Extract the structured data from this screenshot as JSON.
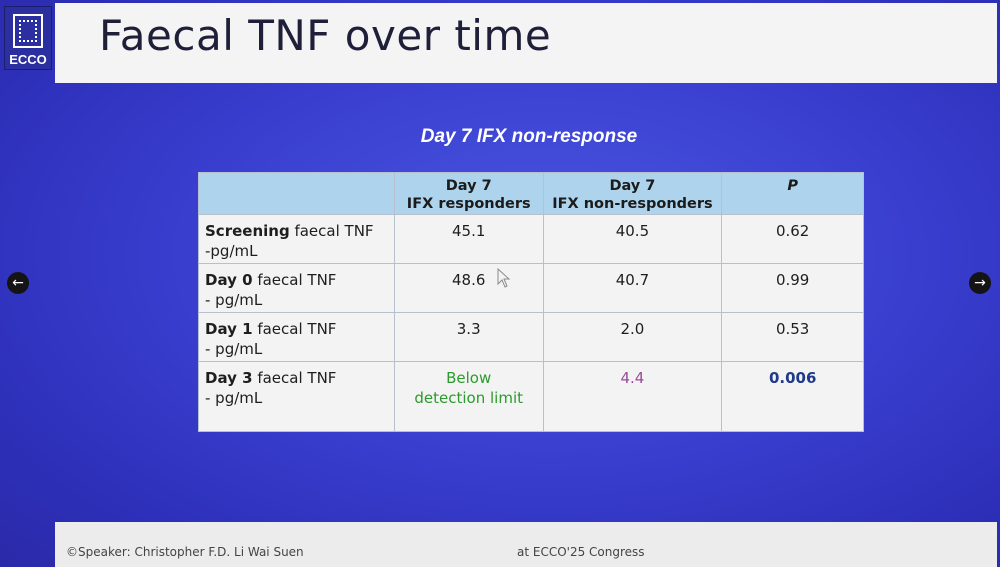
{
  "slide": {
    "title": "Faecal TNF over time",
    "logo_text": "ECCO",
    "subtitle": "Day 7 IFX non-response"
  },
  "table": {
    "headers": [
      "",
      "Day 7\nIFX responders",
      "Day 7\nIFX non-responders",
      "P"
    ],
    "rows": [
      {
        "label_bold": "Screening",
        "label_rest": " faecal TNF",
        "label_line2": "-pg/mL",
        "values": [
          "45.1",
          "40.5",
          "0.62"
        ]
      },
      {
        "label_bold": "Day 0",
        "label_rest": " faecal TNF",
        "label_line2": "- pg/mL",
        "values": [
          "48.6",
          "40.7",
          "0.99"
        ]
      },
      {
        "label_bold": "Day 1",
        "label_rest": " faecal TNF",
        "label_line2": "- pg/mL",
        "values": [
          "3.3",
          "2.0",
          "0.53"
        ]
      },
      {
        "label_bold": "Day 3",
        "label_rest": " faecal TNF",
        "label_line2": "- pg/mL",
        "values": [
          "Below detection limit",
          "4.4",
          "0.006"
        ]
      }
    ],
    "colors": {
      "below_limit": "#2c9a2c",
      "non_responder_day3": "#9b4a9a",
      "significant_p": "#1f3a8a",
      "header_bg": "#add4ec"
    }
  },
  "footer": {
    "speaker": "©Speaker: Christopher F.D. Li Wai Suen",
    "event": "at ECCO'25 Congress"
  },
  "nav": {
    "prev_icon": "arrow-left-icon",
    "next_icon": "arrow-right-icon",
    "prev_glyph": "←",
    "next_glyph": "→"
  }
}
